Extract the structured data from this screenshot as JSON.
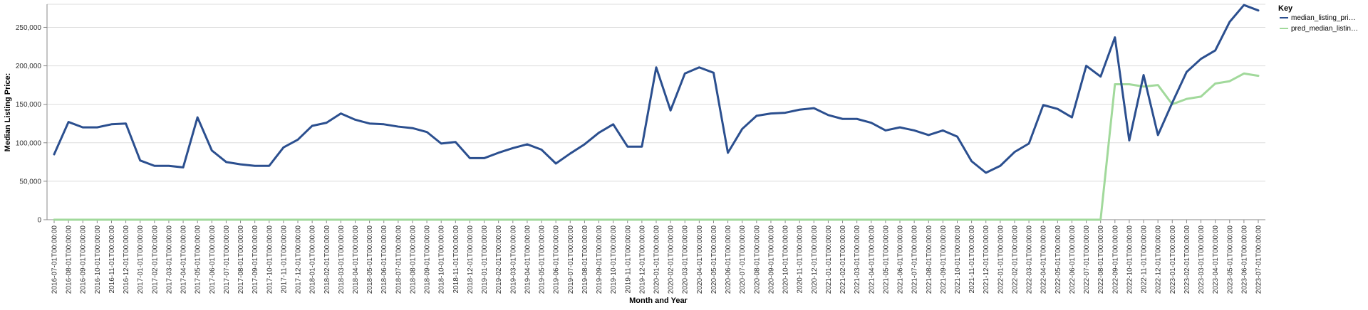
{
  "chart_data": {
    "type": "line",
    "xlabel": "Month and Year",
    "ylabel": "Median Listing Price:",
    "ylim": [
      0,
      280000
    ],
    "yticks": [
      0,
      50000,
      100000,
      150000,
      200000,
      250000
    ],
    "ytick_labels": [
      "0",
      "50,000",
      "100,000",
      "150,000",
      "200,000",
      "250,000"
    ],
    "grid": true,
    "legend_title": "Key",
    "legend_position": "top-right",
    "x": [
      "2016-07-01T00:00:00",
      "2016-08-01T00:00:00",
      "2016-09-01T00:00:00",
      "2016-10-01T00:00:00",
      "2016-11-01T00:00:00",
      "2016-12-01T00:00:00",
      "2017-01-01T00:00:00",
      "2017-02-01T00:00:00",
      "2017-03-01T00:00:00",
      "2017-04-01T00:00:00",
      "2017-05-01T00:00:00",
      "2017-06-01T00:00:00",
      "2017-07-01T00:00:00",
      "2017-08-01T00:00:00",
      "2017-09-01T00:00:00",
      "2017-10-01T00:00:00",
      "2017-11-01T00:00:00",
      "2017-12-01T00:00:00",
      "2018-01-01T00:00:00",
      "2018-02-01T00:00:00",
      "2018-03-01T00:00:00",
      "2018-04-01T00:00:00",
      "2018-05-01T00:00:00",
      "2018-06-01T00:00:00",
      "2018-07-01T00:00:00",
      "2018-08-01T00:00:00",
      "2018-09-01T00:00:00",
      "2018-10-01T00:00:00",
      "2018-11-01T00:00:00",
      "2018-12-01T00:00:00",
      "2019-01-01T00:00:00",
      "2019-02-01T00:00:00",
      "2019-03-01T00:00:00",
      "2019-04-01T00:00:00",
      "2019-05-01T00:00:00",
      "2019-06-01T00:00:00",
      "2019-07-01T00:00:00",
      "2019-08-01T00:00:00",
      "2019-09-01T00:00:00",
      "2019-10-01T00:00:00",
      "2019-11-01T00:00:00",
      "2019-12-01T00:00:00",
      "2020-01-01T00:00:00",
      "2020-02-01T00:00:00",
      "2020-03-01T00:00:00",
      "2020-04-01T00:00:00",
      "2020-05-01T00:00:00",
      "2020-06-01T00:00:00",
      "2020-07-01T00:00:00",
      "2020-08-01T00:00:00",
      "2020-09-01T00:00:00",
      "2020-10-01T00:00:00",
      "2020-11-01T00:00:00",
      "2020-12-01T00:00:00",
      "2021-01-01T00:00:00",
      "2021-02-01T00:00:00",
      "2021-03-01T00:00:00",
      "2021-04-01T00:00:00",
      "2021-05-01T00:00:00",
      "2021-06-01T00:00:00",
      "2021-07-01T00:00:00",
      "2021-08-01T00:00:00",
      "2021-09-01T00:00:00",
      "2021-10-01T00:00:00",
      "2021-11-01T00:00:00",
      "2021-12-01T00:00:00",
      "2022-01-01T00:00:00",
      "2022-02-01T00:00:00",
      "2022-03-01T00:00:00",
      "2022-04-01T00:00:00",
      "2022-05-01T00:00:00",
      "2022-06-01T00:00:00",
      "2022-07-01T00:00:00",
      "2022-08-01T00:00:00",
      "2022-09-01T00:00:00",
      "2022-10-01T00:00:00",
      "2022-11-01T00:00:00",
      "2022-12-01T00:00:00",
      "2023-01-01T00:00:00",
      "2023-02-01T00:00:00",
      "2023-03-01T00:00:00",
      "2023-04-01T00:00:00",
      "2023-05-01T00:00:00",
      "2023-06-01T00:00:00",
      "2023-07-01T00:00:00"
    ],
    "series": [
      {
        "name": "median_listing_pri…",
        "color": "#2b4f8f",
        "values": [
          85000,
          127000,
          120000,
          120000,
          124000,
          125000,
          77000,
          70000,
          70000,
          68000,
          133000,
          90000,
          75000,
          72000,
          70000,
          70000,
          94000,
          104000,
          122000,
          126000,
          138000,
          130000,
          125000,
          124000,
          121000,
          119000,
          114000,
          99000,
          101000,
          80000,
          80000,
          87000,
          93000,
          98000,
          91000,
          73000,
          86000,
          98000,
          113000,
          124000,
          95000,
          95000,
          198000,
          142000,
          190000,
          198000,
          191000,
          87000,
          118000,
          135000,
          138000,
          139000,
          143000,
          145000,
          136000,
          131000,
          131000,
          126000,
          116000,
          120000,
          116000,
          110000,
          116000,
          108000,
          76000,
          61000,
          70000,
          88000,
          99000,
          149000,
          144000,
          133000,
          200000,
          186000,
          237000,
          103000,
          188000,
          110000,
          152000,
          192000,
          209000,
          220000,
          257000,
          279000,
          272000
        ]
      },
      {
        "name": "pred_median_listin…",
        "color": "#a1d99b",
        "values": [
          0,
          0,
          0,
          0,
          0,
          0,
          0,
          0,
          0,
          0,
          0,
          0,
          0,
          0,
          0,
          0,
          0,
          0,
          0,
          0,
          0,
          0,
          0,
          0,
          0,
          0,
          0,
          0,
          0,
          0,
          0,
          0,
          0,
          0,
          0,
          0,
          0,
          0,
          0,
          0,
          0,
          0,
          0,
          0,
          0,
          0,
          0,
          0,
          0,
          0,
          0,
          0,
          0,
          0,
          0,
          0,
          0,
          0,
          0,
          0,
          0,
          0,
          0,
          0,
          0,
          0,
          0,
          0,
          0,
          0,
          0,
          0,
          0,
          0,
          176000,
          176000,
          173000,
          175000,
          150000,
          157000,
          160000,
          177000,
          180000,
          190000,
          187000
        ]
      }
    ]
  }
}
